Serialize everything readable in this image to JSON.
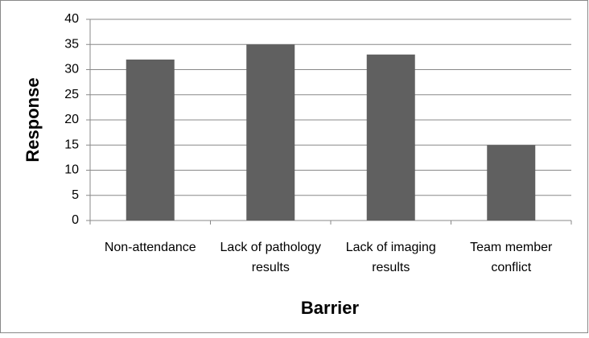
{
  "chart_data": {
    "type": "bar",
    "categories": [
      "Non-attendance",
      "Lack of pathology results",
      "Lack of imaging results",
      "Team member conflict"
    ],
    "values": [
      32,
      35,
      33,
      15
    ],
    "color": "#606060",
    "x_label": "Barrier",
    "y_label": "Response",
    "ylim": [
      0,
      40
    ],
    "yticks": [
      0,
      5,
      10,
      15,
      20,
      25,
      30,
      35,
      40
    ],
    "grid": true
  }
}
